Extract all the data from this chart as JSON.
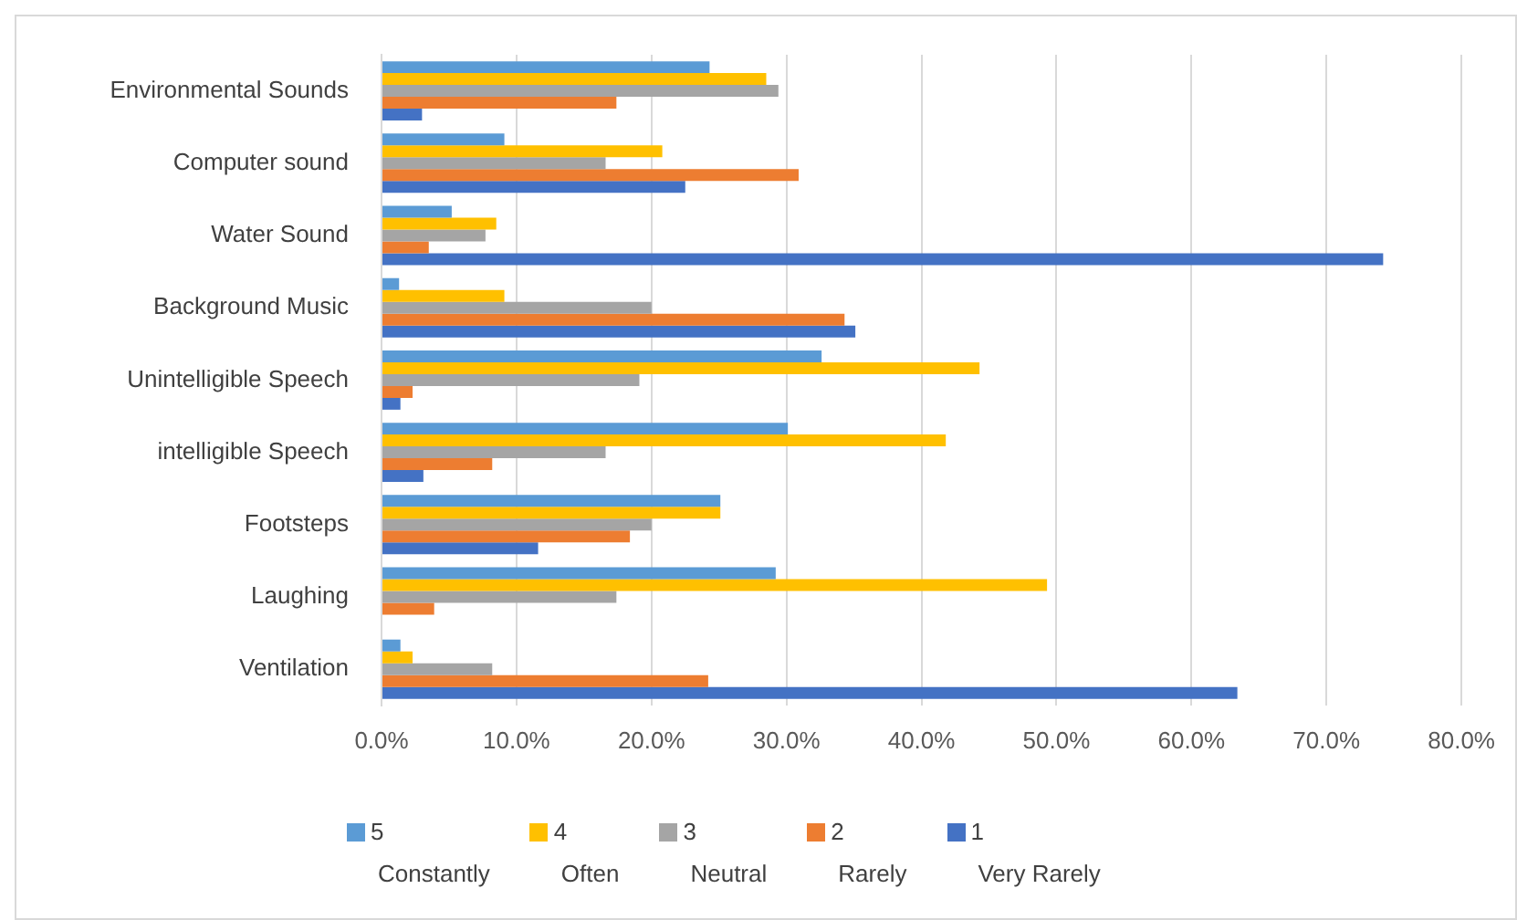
{
  "chart_data": {
    "type": "bar",
    "orientation": "horizontal",
    "categories": [
      "Environmental Sounds",
      "Computer sound",
      "Water Sound",
      "Background Music",
      "Unintelligible Speech",
      "intelligible Speech",
      "Footsteps",
      "Laughing",
      "Ventilation"
    ],
    "series": [
      {
        "name": "5",
        "color": "#5b9bd5",
        "values": [
          24.3,
          9.1,
          5.2,
          1.3,
          32.6,
          30.1,
          25.1,
          29.2,
          1.4
        ]
      },
      {
        "name": "4",
        "color": "#ffc000",
        "values": [
          28.5,
          20.8,
          8.5,
          9.1,
          44.3,
          41.8,
          25.1,
          49.3,
          2.3
        ]
      },
      {
        "name": "3",
        "color": "#a5a5a5",
        "values": [
          29.4,
          16.6,
          7.7,
          20.0,
          19.1,
          16.6,
          20.0,
          17.4,
          8.2
        ]
      },
      {
        "name": "2",
        "color": "#ed7d31",
        "values": [
          17.4,
          30.9,
          3.5,
          34.3,
          2.3,
          8.2,
          18.4,
          3.9,
          24.2
        ]
      },
      {
        "name": "1",
        "color": "#4472c4",
        "values": [
          3.0,
          22.5,
          74.2,
          35.1,
          1.4,
          3.1,
          11.6,
          0,
          63.4
        ]
      }
    ],
    "xlim": [
      0,
      80
    ],
    "xticks": [
      {
        "value": 0,
        "label": "0.0%"
      },
      {
        "value": 10,
        "label": "10.0%"
      },
      {
        "value": 20,
        "label": "20.0%"
      },
      {
        "value": 30,
        "label": "30.0%"
      },
      {
        "value": 40,
        "label": "40.0%"
      },
      {
        "value": 50,
        "label": "50.0%"
      },
      {
        "value": 60,
        "label": "60.0%"
      },
      {
        "value": 70,
        "label": "70.0%"
      },
      {
        "value": 80,
        "label": "80.0%"
      }
    ],
    "grid": "x",
    "legend": "bottom",
    "annotations": [
      "Constantly",
      "Often",
      "Neutral",
      "Rarely",
      "Very Rarely"
    ]
  }
}
